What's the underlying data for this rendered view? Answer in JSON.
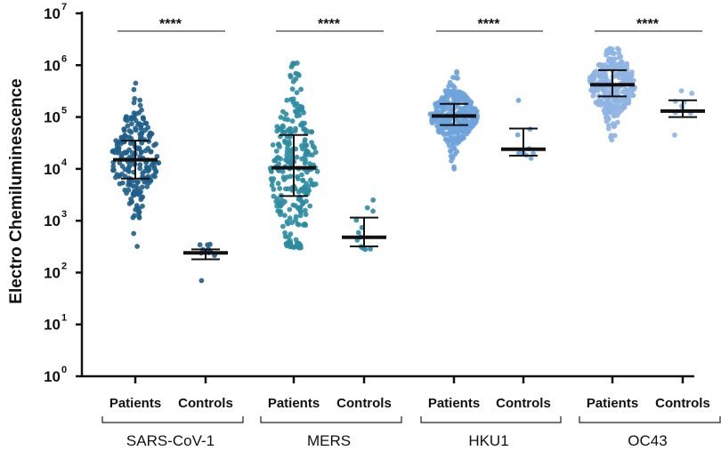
{
  "chart_data": {
    "type": "scatter",
    "ylabel": "Electro Chemiluminescence",
    "y_scale": "log10",
    "ylim": [
      1,
      10000000
    ],
    "ytick_exponents": [
      0,
      1,
      2,
      3,
      4,
      5,
      6,
      7
    ],
    "ytick_base": "10",
    "categories": [
      "Patients",
      "Controls",
      "Patients",
      "Controls",
      "Patients",
      "Controls",
      "Patients",
      "Controls"
    ],
    "groups": [
      {
        "name": "SARS-CoV-1",
        "significance": "****",
        "color": "#1f5f8b"
      },
      {
        "name": "MERS",
        "significance": "****",
        "color": "#2b8ba1"
      },
      {
        "name": "HKU1",
        "significance": "****",
        "color": "#6fa3dc"
      },
      {
        "name": "OC43",
        "significance": "****",
        "color": "#8fb4e3"
      }
    ],
    "series": [
      {
        "group": "SARS-CoV-1",
        "category": "Patients",
        "median": 15000,
        "q1": 6500,
        "q3": 35000,
        "min": 320,
        "max": 450000,
        "n": 220
      },
      {
        "group": "SARS-CoV-1",
        "category": "Controls",
        "median": 240,
        "q1": 180,
        "q3": 280,
        "min": 70,
        "max": 350,
        "n": 10
      },
      {
        "group": "MERS",
        "category": "Patients",
        "median": 10500,
        "q1": 3000,
        "q3": 45000,
        "min": 300,
        "max": 1100000,
        "n": 260
      },
      {
        "group": "MERS",
        "category": "Controls",
        "median": 480,
        "q1": 320,
        "q3": 1150,
        "min": 280,
        "max": 2500,
        "n": 12
      },
      {
        "group": "HKU1",
        "category": "Patients",
        "median": 105000,
        "q1": 70000,
        "q3": 180000,
        "min": 10000,
        "max": 750000,
        "n": 300
      },
      {
        "group": "HKU1",
        "category": "Controls",
        "median": 24000,
        "q1": 18000,
        "q3": 60000,
        "min": 16000,
        "max": 210000,
        "n": 10
      },
      {
        "group": "OC43",
        "category": "Patients",
        "median": 420000,
        "q1": 250000,
        "q3": 800000,
        "min": 36000,
        "max": 2100000,
        "n": 300
      },
      {
        "group": "OC43",
        "category": "Controls",
        "median": 130000,
        "q1": 100000,
        "q3": 210000,
        "min": 45000,
        "max": 320000,
        "n": 9
      }
    ]
  }
}
